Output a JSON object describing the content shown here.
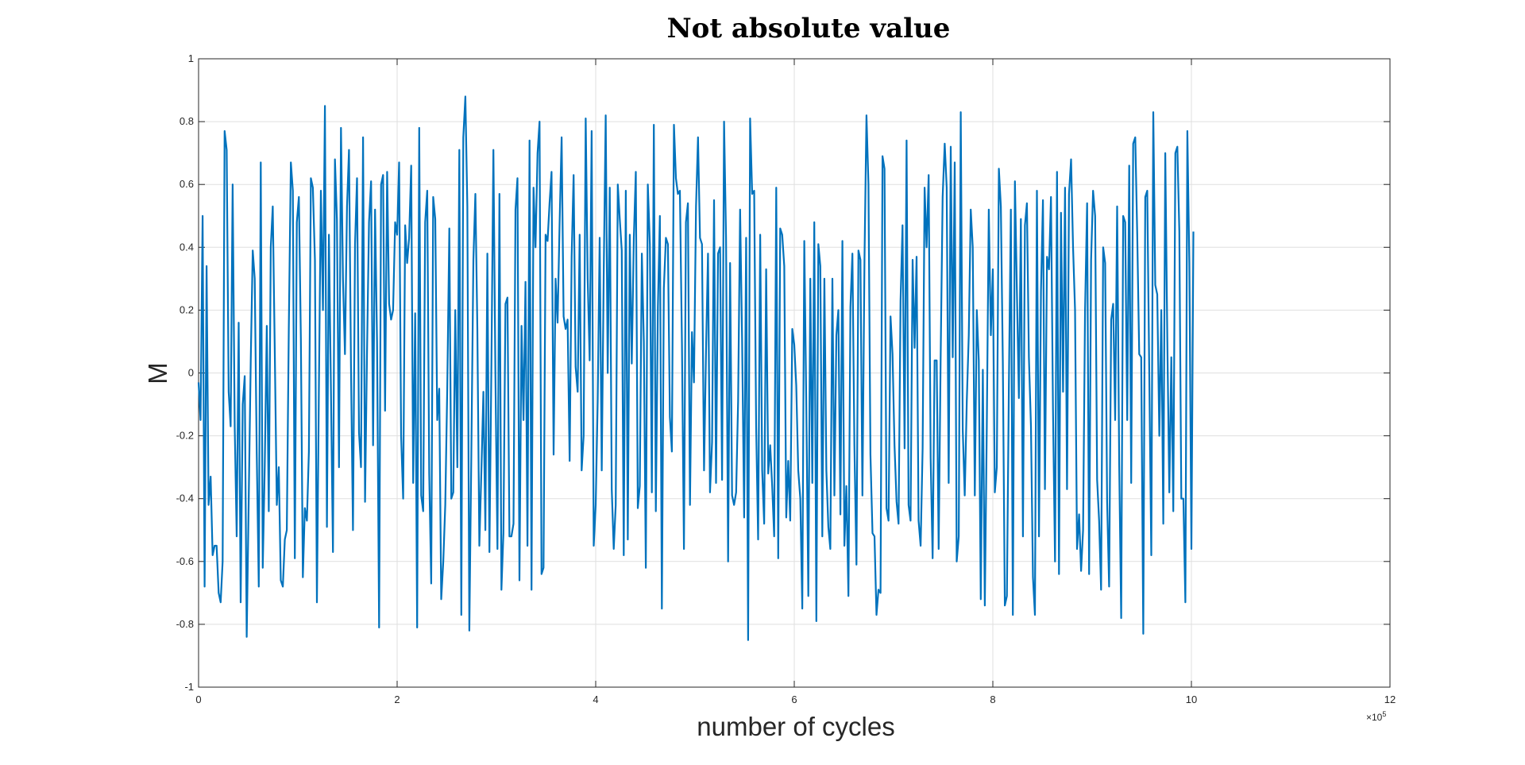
{
  "chart_data": {
    "type": "line",
    "title": "Not absolute value",
    "xlabel": "number of cycles",
    "ylabel": "M",
    "x_exponent_label": "×10⁵",
    "x_exponent_mantissa": "×10",
    "x_exponent_power": "5",
    "xlim": [
      0,
      12
    ],
    "ylim": [
      -1,
      1
    ],
    "x_ticks": [
      0,
      2,
      4,
      6,
      8,
      10,
      12
    ],
    "x_tick_labels": [
      "0",
      "2",
      "4",
      "6",
      "8",
      "10",
      "12"
    ],
    "y_ticks": [
      -1,
      -0.8,
      -0.6,
      -0.4,
      -0.2,
      0,
      0.2,
      0.4,
      0.6,
      0.8,
      1
    ],
    "y_tick_labels": [
      "-1",
      "-0.8",
      "-0.6",
      "-0.4",
      "-0.2",
      "0",
      "0.2",
      "0.4",
      "0.6",
      "0.8",
      "1"
    ],
    "grid": true,
    "line_color": "#0072bd",
    "series": [
      {
        "x_start": 0,
        "x_end": 10.02,
        "values": [
          -0.03,
          -0.15,
          0.5,
          -0.68,
          0.34,
          -0.42,
          -0.33,
          -0.58,
          -0.55,
          -0.55,
          -0.7,
          -0.73,
          -0.6,
          0.77,
          0.71,
          -0.06,
          -0.17,
          0.6,
          -0.17,
          -0.52,
          0.16,
          -0.73,
          -0.1,
          -0.01,
          -0.84,
          -0.41,
          0.04,
          0.39,
          0.3,
          -0.25,
          -0.68,
          0.67,
          -0.62,
          -0.3,
          0.15,
          -0.44,
          0.4,
          0.53,
          0.06,
          -0.42,
          -0.3,
          -0.66,
          -0.68,
          -0.53,
          -0.5,
          0.14,
          0.67,
          0.58,
          -0.59,
          0.48,
          0.56,
          0.11,
          -0.65,
          -0.43,
          -0.47,
          -0.25,
          0.62,
          0.59,
          0.36,
          -0.73,
          -0.05,
          0.58,
          0.2,
          0.85,
          -0.49,
          0.44,
          -0.06,
          -0.57,
          0.68,
          0.49,
          -0.3,
          0.78,
          0.3,
          0.06,
          0.53,
          0.71,
          0.02,
          -0.5,
          0.41,
          0.62,
          -0.19,
          -0.3,
          0.75,
          -0.41,
          0.07,
          0.48,
          0.61,
          -0.23,
          0.52,
          0.1,
          -0.81,
          0.6,
          0.63,
          -0.12,
          0.64,
          0.22,
          0.17,
          0.2,
          0.48,
          0.44,
          0.67,
          -0.2,
          -0.4,
          0.47,
          0.35,
          0.43,
          0.66,
          -0.35,
          0.19,
          -0.81,
          0.78,
          -0.39,
          -0.44,
          0.48,
          0.58,
          -0.32,
          -0.67,
          0.56,
          0.49,
          -0.15,
          -0.05,
          -0.72,
          -0.6,
          -0.42,
          -0.05,
          0.46,
          -0.4,
          -0.38,
          0.2,
          -0.3,
          0.71,
          -0.77,
          0.75,
          0.88,
          0.53,
          -0.82,
          -0.26,
          0.36,
          0.57,
          0.14,
          -0.55,
          -0.31,
          -0.06,
          -0.5,
          0.38,
          -0.57,
          0.03,
          0.71,
          0.0,
          -0.56,
          0.57,
          -0.69,
          -0.51,
          0.22,
          0.24,
          -0.52,
          -0.52,
          -0.48,
          0.52,
          0.62,
          -0.66,
          0.15,
          -0.15,
          0.29,
          -0.55,
          0.74,
          -0.69,
          0.59,
          0.4,
          0.7,
          0.8,
          -0.64,
          -0.62,
          0.44,
          0.42,
          0.54,
          0.64,
          -0.26,
          0.3,
          0.16,
          0.47,
          0.75,
          0.18,
          0.14,
          0.17,
          -0.28,
          0.37,
          0.63,
          0.02,
          -0.06,
          0.44,
          -0.31,
          -0.2,
          0.81,
          0.3,
          0.04,
          0.77,
          -0.55,
          -0.42,
          -0.09,
          0.43,
          -0.31,
          0.32,
          0.82,
          0.0,
          0.59,
          -0.37,
          -0.56,
          -0.42,
          0.6,
          0.49,
          0.39,
          -0.58,
          0.58,
          -0.53,
          0.44,
          0.03,
          0.43,
          0.64,
          -0.43,
          -0.36,
          0.38,
          0.1,
          -0.62,
          0.6,
          0.41,
          -0.38,
          0.79,
          -0.44,
          0.21,
          0.5,
          -0.75,
          0.27,
          0.43,
          0.41,
          -0.14,
          -0.25,
          0.79,
          0.62,
          0.57,
          0.58,
          0.09,
          -0.56,
          0.48,
          0.54,
          -0.42,
          0.13,
          -0.03,
          0.53,
          0.75,
          0.43,
          0.41,
          -0.31,
          0.07,
          0.38,
          -0.38,
          -0.22,
          0.55,
          -0.35,
          0.38,
          0.4,
          -0.34,
          0.8,
          0.43,
          -0.6,
          0.35,
          -0.39,
          -0.42,
          -0.38,
          -0.09,
          0.52,
          0.11,
          -0.46,
          0.43,
          -0.85,
          0.81,
          0.57,
          0.58,
          -0.17,
          -0.53,
          0.44,
          -0.31,
          -0.48,
          0.33,
          -0.32,
          -0.23,
          -0.36,
          -0.52,
          0.59,
          -0.59,
          0.46,
          0.44,
          0.34,
          -0.46,
          -0.28,
          -0.47,
          0.14,
          0.09,
          -0.04,
          -0.31,
          -0.4,
          -0.75,
          0.42,
          -0.09,
          -0.71,
          0.3,
          -0.35,
          0.48,
          -0.79,
          0.41,
          0.34,
          -0.52,
          0.3,
          -0.31,
          -0.49,
          -0.56,
          0.3,
          -0.39,
          0.12,
          0.2,
          -0.45,
          0.42,
          -0.55,
          -0.36,
          -0.71,
          0.21,
          0.38,
          -0.23,
          -0.61,
          0.39,
          0.36,
          -0.39,
          0.36,
          0.82,
          0.6,
          -0.26,
          -0.51,
          -0.52,
          -0.77,
          -0.69,
          -0.7,
          0.69,
          0.65,
          -0.43,
          -0.47,
          0.18,
          0.06,
          -0.23,
          -0.41,
          -0.48,
          0.23,
          0.47,
          -0.24,
          0.74,
          -0.42,
          -0.47,
          0.36,
          0.08,
          0.37,
          -0.47,
          -0.55,
          -0.24,
          0.59,
          0.4,
          0.63,
          -0.27,
          -0.59,
          0.04,
          0.04,
          -0.56,
          0.05,
          0.56,
          0.73,
          0.59,
          -0.35,
          0.72,
          0.05,
          0.67,
          -0.6,
          -0.52,
          0.83,
          -0.18,
          -0.39,
          -0.09,
          0.12,
          0.52,
          0.4,
          -0.39,
          0.2,
          0.04,
          -0.72,
          0.01,
          -0.74,
          -0.17,
          0.52,
          0.12,
          0.33,
          -0.38,
          -0.3,
          0.65,
          0.53,
          0.03,
          -0.74,
          -0.71,
          -0.04,
          0.52,
          -0.77,
          0.61,
          0.26,
          -0.08,
          0.49,
          -0.52,
          0.47,
          0.54,
          0.05,
          -0.17,
          -0.65,
          -0.77,
          0.58,
          -0.52,
          0.26,
          0.55,
          -0.37,
          0.37,
          0.33,
          0.56,
          -0.11,
          -0.6,
          0.64,
          -0.64,
          0.51,
          -0.06,
          0.59,
          -0.37,
          0.57,
          0.68,
          0.4,
          0.2,
          -0.56,
          -0.45,
          -0.63,
          -0.5,
          0.2,
          0.54,
          -0.64,
          0.36,
          0.58,
          0.5,
          -0.34,
          -0.47,
          -0.69,
          0.4,
          0.35,
          -0.41,
          -0.68,
          0.17,
          0.22,
          -0.15,
          0.53,
          -0.29,
          -0.78,
          0.5,
          0.48,
          -0.15,
          0.66,
          -0.35,
          0.73,
          0.75,
          0.44,
          0.06,
          0.05,
          -0.83,
          0.56,
          0.58,
          0.01,
          -0.58,
          0.83,
          0.28,
          0.25,
          -0.2,
          0.2,
          -0.48,
          0.7,
          0.1,
          -0.38,
          0.05,
          -0.44,
          0.7,
          0.72,
          0.45,
          -0.4,
          -0.4,
          -0.73,
          0.77,
          0.35,
          -0.56,
          0.45
        ]
      }
    ]
  }
}
